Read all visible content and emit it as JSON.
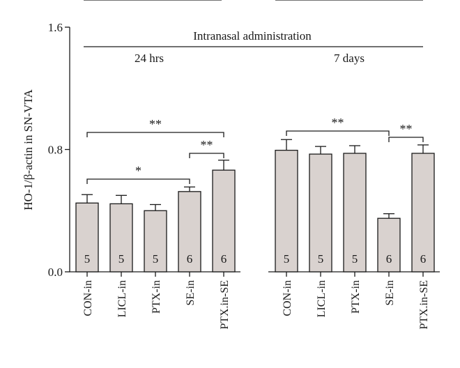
{
  "chart_data": {
    "type": "bar",
    "ylabel": "HO-1/β-actin in SN-VTA",
    "ylim": [
      0,
      1.6
    ],
    "yticks": [
      "0.0",
      "0.8",
      "1.6"
    ],
    "yticks_values": [
      0.0,
      0.8,
      1.6
    ],
    "header": "Intranasal administration",
    "colors": {
      "bar": "#d9d2cf",
      "stroke": "#1a1a1a"
    },
    "groups": [
      {
        "label": "24 hrs",
        "categories": [
          "CON-in",
          "LICL-in",
          "PTX-in",
          "SE-in",
          "PTX.in-SE"
        ],
        "values": [
          0.45,
          0.445,
          0.4,
          0.525,
          0.665
        ],
        "errors": [
          0.055,
          0.055,
          0.04,
          0.03,
          0.065
        ],
        "n": [
          "5",
          "5",
          "5",
          "6",
          "6"
        ]
      },
      {
        "label": "7 days",
        "categories": [
          "CON-in",
          "LICL-in",
          "PTX-in",
          "SE-in",
          "PTX.in-SE"
        ],
        "values": [
          0.795,
          0.77,
          0.775,
          0.35,
          0.775
        ],
        "errors": [
          0.07,
          0.05,
          0.05,
          0.03,
          0.055
        ],
        "n": [
          "5",
          "5",
          "5",
          "6",
          "6"
        ]
      }
    ],
    "significance": [
      {
        "group": 0,
        "from": 0,
        "to": 4,
        "label": "**"
      },
      {
        "group": 0,
        "from": 0,
        "to": 3,
        "label": "*"
      },
      {
        "group": 0,
        "from": 3,
        "to": 4,
        "label": "**"
      },
      {
        "group": 1,
        "from": 0,
        "to": 3,
        "label": "**"
      },
      {
        "group": 1,
        "from": 3,
        "to": 4,
        "label": "**"
      }
    ]
  }
}
